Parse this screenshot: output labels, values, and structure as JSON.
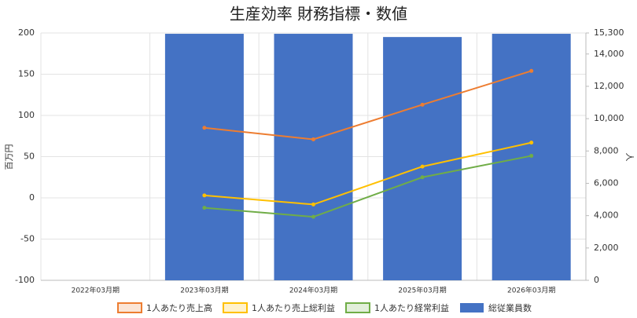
{
  "chart_data": {
    "type": "bar-line",
    "title": "生産効率 財務指標・数値",
    "y_label": "百万円",
    "y2_label": "人",
    "categories": [
      "2022年03月期",
      "2023年03月期",
      "2024年03月期",
      "2025年03月期",
      "2026年03月期"
    ],
    "ylim": [
      -100,
      200
    ],
    "yticks": [
      -100,
      -50,
      0,
      50,
      100,
      150,
      200
    ],
    "y2lim": [
      0,
      15300
    ],
    "y2ticks": [
      0,
      {
        "value": 2000,
        "label": "2,000"
      },
      {
        "value": 4000,
        "label": "4,000"
      },
      {
        "value": 6000,
        "label": "6,000"
      },
      {
        "value": 8000,
        "label": "8,000"
      },
      {
        "value": 10000,
        "label": "10,000"
      },
      {
        "value": 12000,
        "label": "12,000"
      },
      {
        "value": 14000,
        "label": "14,000"
      },
      {
        "value": 15300,
        "label": "15,300"
      }
    ],
    "grid": true,
    "series": [
      {
        "name": "1人あたり売上高",
        "type": "line",
        "color": "#ed7d31",
        "values": [
          null,
          85,
          71,
          113,
          154
        ]
      },
      {
        "name": "1人あたり売上総利益",
        "type": "line",
        "color": "#ffc000",
        "values": [
          null,
          3,
          -8,
          38,
          67
        ]
      },
      {
        "name": "1人あたり経常利益",
        "type": "line",
        "color": "#70ad47",
        "values": [
          null,
          -12,
          -23,
          25,
          51
        ]
      },
      {
        "name": "総従業員数",
        "type": "bar",
        "axis": "y2",
        "color": "#4472c4",
        "values": [
          null,
          15250,
          15250,
          15050,
          15250
        ]
      }
    ]
  }
}
